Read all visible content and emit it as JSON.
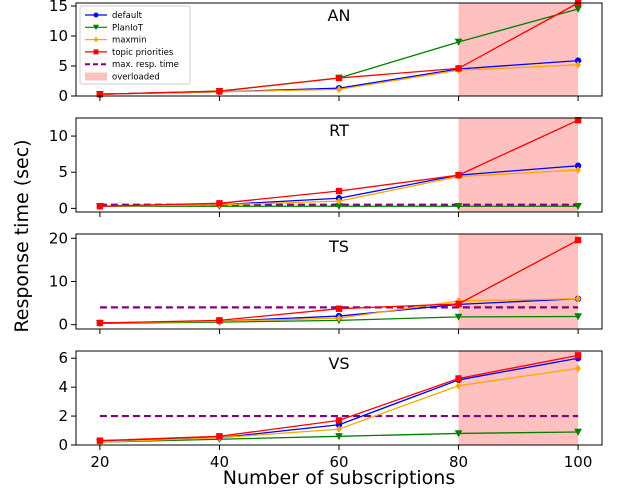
{
  "chart_data": {
    "type": "line",
    "xlabel": "Number of subscriptions",
    "ylabel": "Response time (sec)",
    "x": [
      20,
      40,
      60,
      80,
      100
    ],
    "xlim": [
      16,
      104
    ],
    "xticks": [
      "20",
      "40",
      "60",
      "80",
      "100"
    ],
    "overloaded_region": [
      80,
      100
    ],
    "colors": {
      "default": "#0000ff",
      "PlanIoT": "#007f00",
      "maxmin": "#ffa500",
      "topic priorities": "#ff0000",
      "max. resp. time": "#800080",
      "overloaded": "#ffc0c0"
    },
    "legend": {
      "placement": "top-left",
      "entries": [
        "default",
        "PlanIoT",
        "maxmin",
        "topic priorities",
        "max. resp. time",
        "overloaded"
      ]
    },
    "panels": [
      {
        "title": "AN",
        "ylim": [
          0,
          15.5
        ],
        "yticks": [
          0,
          5,
          10,
          15
        ],
        "max_resp_time": null,
        "series": [
          {
            "name": "default",
            "values": [
              0.3,
              0.7,
              1.3,
              4.5,
              5.9
            ]
          },
          {
            "name": "PlanIoT",
            "values": [
              0.3,
              0.8,
              3.0,
              9.0,
              14.5
            ]
          },
          {
            "name": "maxmin",
            "values": [
              0.3,
              0.7,
              1.1,
              4.3,
              5.2
            ]
          },
          {
            "name": "topic priorities",
            "values": [
              0.3,
              0.8,
              3.0,
              4.6,
              15.5
            ]
          }
        ]
      },
      {
        "title": "RT",
        "ylim": [
          -0.5,
          12.5
        ],
        "yticks": [
          0,
          5,
          10
        ],
        "max_resp_time": 0.5,
        "series": [
          {
            "name": "default",
            "values": [
              0.3,
              0.5,
              1.4,
              4.6,
              5.9
            ]
          },
          {
            "name": "PlanIoT",
            "values": [
              0.3,
              0.3,
              0.3,
              0.3,
              0.3
            ]
          },
          {
            "name": "maxmin",
            "values": [
              0.3,
              0.5,
              1.0,
              4.4,
              5.3
            ]
          },
          {
            "name": "topic priorities",
            "values": [
              0.3,
              0.7,
              2.4,
              4.6,
              12.2
            ]
          }
        ]
      },
      {
        "title": "TS",
        "ylim": [
          -1,
          21
        ],
        "yticks": [
          0,
          10,
          20
        ],
        "max_resp_time": 4.0,
        "series": [
          {
            "name": "default",
            "values": [
              0.4,
              0.8,
              2.0,
              4.7,
              6.0
            ]
          },
          {
            "name": "PlanIoT",
            "values": [
              0.3,
              0.6,
              1.0,
              1.8,
              1.9
            ]
          },
          {
            "name": "maxmin",
            "values": [
              0.4,
              0.8,
              1.5,
              5.5,
              6.0
            ]
          },
          {
            "name": "topic priorities",
            "values": [
              0.4,
              1.0,
              3.7,
              4.8,
              19.6
            ]
          }
        ]
      },
      {
        "title": "VS",
        "ylim": [
          0,
          6.5
        ],
        "yticks": [
          0,
          2,
          4,
          6
        ],
        "max_resp_time": 2.0,
        "series": [
          {
            "name": "default",
            "values": [
              0.3,
              0.5,
              1.4,
              4.5,
              6.0
            ]
          },
          {
            "name": "PlanIoT",
            "values": [
              0.2,
              0.4,
              0.6,
              0.8,
              0.9
            ]
          },
          {
            "name": "maxmin",
            "values": [
              0.2,
              0.5,
              1.1,
              4.1,
              5.3
            ]
          },
          {
            "name": "topic priorities",
            "values": [
              0.3,
              0.6,
              1.7,
              4.6,
              6.2
            ]
          }
        ]
      }
    ]
  }
}
